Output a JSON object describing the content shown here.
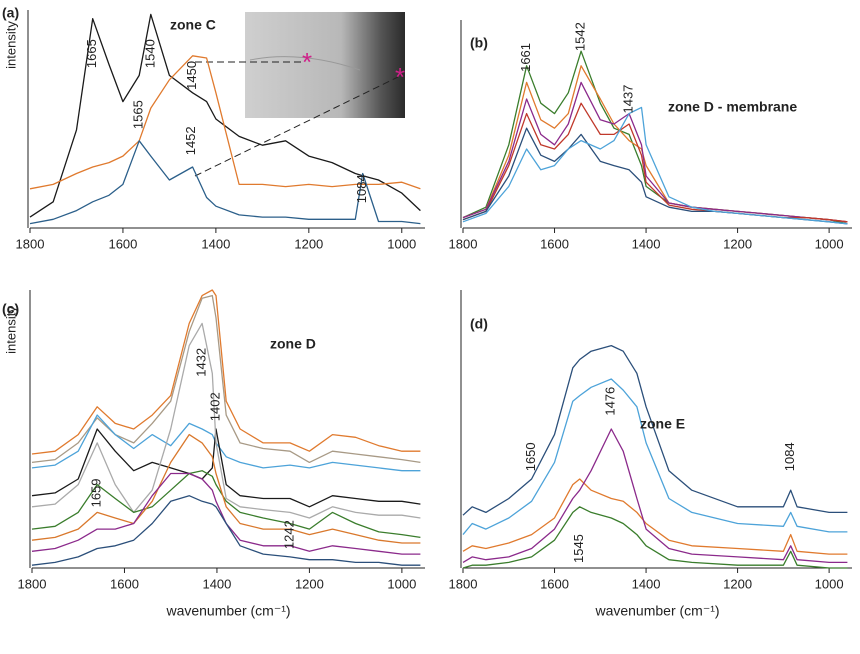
{
  "chart_data": [
    {
      "type": "line",
      "panel_label": "(a)",
      "zone": "zone C",
      "ylabel": "intensity",
      "x": [
        1800,
        1750,
        1700,
        1665,
        1630,
        1600,
        1565,
        1540,
        1500,
        1450,
        1420,
        1400,
        1350,
        1300,
        1250,
        1200,
        1150,
        1100,
        1084,
        1050,
        1000,
        960
      ],
      "series": [
        {
          "color": "#1a1a1a",
          "values": [
            5,
            12,
            45,
            96,
            75,
            58,
            70,
            98,
            70,
            62,
            58,
            50,
            42,
            38,
            40,
            33,
            30,
            25,
            24,
            22,
            16,
            8
          ]
        },
        {
          "color": "#e07a2e",
          "values": [
            18,
            20,
            25,
            28,
            30,
            33,
            40,
            55,
            68,
            79,
            78,
            62,
            20,
            20,
            19,
            20,
            19,
            20,
            20,
            20,
            21,
            18
          ]
        },
        {
          "color": "#2b5f8a",
          "values": [
            2,
            4,
            8,
            12,
            15,
            20,
            40,
            33,
            22,
            28,
            14,
            10,
            6,
            5,
            5,
            4,
            4,
            4,
            25,
            3,
            3,
            2
          ]
        }
      ],
      "annotations": [
        {
          "text": "1665",
          "x": 1665,
          "y": 80
        },
        {
          "text": "1540",
          "x": 1540,
          "y": 80
        },
        {
          "text": "1565",
          "x": 1565,
          "y": 52
        },
        {
          "text": "1450",
          "x": 1450,
          "y": 70
        },
        {
          "text": "1452",
          "x": 1452,
          "y": 40
        },
        {
          "text": "1084",
          "x": 1084,
          "y": 18
        }
      ],
      "xlim": [
        1800,
        950
      ],
      "xticks": [
        1800,
        1600,
        1400,
        1200,
        1000
      ],
      "ylim": [
        0,
        100
      ]
    },
    {
      "type": "line",
      "panel_label": "(b)",
      "zone": "zone D - membrane",
      "x": [
        1800,
        1750,
        1700,
        1661,
        1630,
        1600,
        1570,
        1542,
        1500,
        1470,
        1437,
        1410,
        1400,
        1350,
        1300,
        1250,
        1200,
        1150,
        1100,
        1050,
        1000,
        960
      ],
      "series": [
        {
          "color": "#3a7d2c",
          "values": [
            5,
            10,
            40,
            78,
            60,
            55,
            65,
            85,
            60,
            48,
            45,
            30,
            20,
            12,
            10,
            9,
            8,
            7,
            6,
            5,
            4,
            2
          ]
        },
        {
          "color": "#e07a2e",
          "values": [
            5,
            9,
            35,
            70,
            52,
            48,
            55,
            78,
            62,
            50,
            42,
            38,
            30,
            12,
            10,
            9,
            8,
            7,
            6,
            5,
            4,
            3
          ]
        },
        {
          "color": "#8b2a8b",
          "values": [
            5,
            9,
            32,
            62,
            45,
            40,
            50,
            70,
            52,
            50,
            55,
            40,
            25,
            12,
            10,
            9,
            8,
            7,
            6,
            5,
            4,
            3
          ]
        },
        {
          "color": "#c0392b",
          "values": [
            4,
            8,
            30,
            55,
            40,
            38,
            45,
            60,
            45,
            45,
            50,
            35,
            22,
            11,
            9,
            8,
            7,
            6,
            5,
            5,
            4,
            3
          ]
        },
        {
          "color": "#2b4f7a",
          "values": [
            4,
            8,
            25,
            48,
            35,
            32,
            38,
            45,
            32,
            30,
            28,
            22,
            15,
            10,
            8,
            8,
            7,
            6,
            5,
            4,
            3,
            2
          ]
        },
        {
          "color": "#4da3d9",
          "values": [
            3,
            7,
            20,
            38,
            28,
            30,
            38,
            42,
            38,
            42,
            55,
            58,
            40,
            15,
            10,
            8,
            7,
            6,
            5,
            4,
            3,
            2
          ]
        }
      ],
      "annotations": [
        {
          "text": "1661",
          "x": 1661,
          "y": 82
        },
        {
          "text": "1542",
          "x": 1542,
          "y": 92
        },
        {
          "text": "1437",
          "x": 1437,
          "y": 62
        }
      ],
      "xlim": [
        1800,
        950
      ],
      "xticks": [
        1800,
        1600,
        1400,
        1200,
        1000
      ],
      "ylim": [
        0,
        100
      ]
    },
    {
      "type": "line",
      "panel_label": "(c)",
      "zone": "zone D",
      "ylabel": "intensity",
      "xlabel": "wavenumber (cm⁻¹)",
      "x": [
        1800,
        1750,
        1700,
        1659,
        1620,
        1580,
        1540,
        1500,
        1460,
        1432,
        1410,
        1402,
        1380,
        1350,
        1300,
        1242,
        1200,
        1150,
        1100,
        1050,
        1000,
        960
      ],
      "series": [
        {
          "color": "#e07a2e",
          "values": [
            41,
            42,
            48,
            58,
            52,
            50,
            55,
            62,
            88,
            98,
            100,
            98,
            60,
            50,
            45,
            45,
            42,
            48,
            47,
            44,
            42,
            42
          ]
        },
        {
          "color": "#a89a86",
          "values": [
            38,
            39,
            45,
            54,
            48,
            45,
            52,
            60,
            85,
            97,
            98,
            90,
            55,
            45,
            43,
            42,
            38,
            42,
            41,
            40,
            39,
            38
          ]
        },
        {
          "color": "#4da3d9",
          "values": [
            36,
            37,
            42,
            55,
            48,
            43,
            48,
            44,
            52,
            50,
            48,
            45,
            40,
            38,
            36,
            37,
            36,
            38,
            37,
            36,
            35,
            35
          ]
        },
        {
          "color": "#1a1a1a",
          "values": [
            26,
            27,
            32,
            50,
            42,
            35,
            38,
            36,
            34,
            32,
            36,
            50,
            30,
            26,
            25,
            25,
            22,
            26,
            25,
            24,
            24,
            23
          ]
        },
        {
          "color": "#aaaaaa",
          "values": [
            22,
            23,
            30,
            45,
            30,
            20,
            28,
            50,
            80,
            88,
            70,
            45,
            25,
            22,
            21,
            20,
            18,
            22,
            20,
            19,
            19,
            18
          ]
        },
        {
          "color": "#3a7d2c",
          "values": [
            14,
            15,
            20,
            30,
            25,
            20,
            22,
            28,
            34,
            35,
            33,
            30,
            24,
            20,
            18,
            16,
            14,
            20,
            16,
            13,
            12,
            11
          ]
        },
        {
          "color": "#d9782c",
          "values": [
            10,
            11,
            14,
            20,
            18,
            16,
            24,
            38,
            48,
            45,
            40,
            34,
            22,
            16,
            14,
            14,
            12,
            14,
            12,
            10,
            9,
            9
          ]
        },
        {
          "color": "#8b2a8b",
          "values": [
            6,
            7,
            10,
            14,
            14,
            16,
            26,
            34,
            34,
            32,
            28,
            24,
            16,
            10,
            8,
            8,
            6,
            8,
            7,
            6,
            5,
            5
          ]
        },
        {
          "color": "#2b4f7a",
          "values": [
            1,
            2,
            4,
            7,
            8,
            10,
            16,
            24,
            26,
            24,
            23,
            22,
            16,
            8,
            5,
            4,
            3,
            3,
            2,
            2,
            1,
            1
          ]
        }
      ],
      "annotations": [
        {
          "text": "1659",
          "x": 1659,
          "y": 27
        },
        {
          "text": "1432",
          "x": 1432,
          "y": 74
        },
        {
          "text": "1402",
          "x": 1402,
          "y": 58
        },
        {
          "text": "1242",
          "x": 1242,
          "y": 12
        }
      ],
      "xlim": [
        1800,
        950
      ],
      "xticks": [
        1800,
        1600,
        1400,
        1200,
        1000
      ],
      "ylim": [
        0,
        100
      ]
    },
    {
      "type": "line",
      "panel_label": "(d)",
      "zone": "zone E",
      "xlabel": "wavenumber (cm⁻¹)",
      "x": [
        1800,
        1780,
        1750,
        1700,
        1650,
        1600,
        1560,
        1545,
        1520,
        1476,
        1450,
        1420,
        1400,
        1350,
        1300,
        1200,
        1100,
        1084,
        1070,
        1000,
        960
      ],
      "series": [
        {
          "color": "#2b4f7a",
          "values": [
            19,
            22,
            20,
            25,
            32,
            48,
            72,
            75,
            78,
            80,
            78,
            70,
            58,
            35,
            28,
            22,
            22,
            28,
            22,
            20,
            20
          ]
        },
        {
          "color": "#4da3d9",
          "values": [
            12,
            16,
            14,
            18,
            24,
            38,
            60,
            62,
            65,
            68,
            64,
            58,
            45,
            25,
            20,
            16,
            15,
            20,
            15,
            13,
            13
          ]
        },
        {
          "color": "#e07a2e",
          "values": [
            6,
            8,
            7,
            9,
            12,
            18,
            30,
            32,
            28,
            25,
            24,
            20,
            16,
            10,
            8,
            7,
            6,
            12,
            6,
            5,
            5
          ]
        },
        {
          "color": "#8b2a8b",
          "values": [
            2,
            4,
            3,
            4,
            7,
            14,
            25,
            28,
            35,
            50,
            42,
            25,
            14,
            7,
            5,
            4,
            3,
            8,
            3,
            2,
            2
          ]
        },
        {
          "color": "#3a7d2c",
          "values": [
            0,
            1,
            1,
            2,
            4,
            10,
            20,
            22,
            20,
            18,
            16,
            12,
            8,
            3,
            2,
            1,
            1,
            6,
            1,
            0,
            0
          ]
        }
      ],
      "annotations": [
        {
          "text": "1650",
          "x": 1650,
          "y": 40
        },
        {
          "text": "1545",
          "x": 1545,
          "y": 7
        },
        {
          "text": "1476",
          "x": 1476,
          "y": 60
        },
        {
          "text": "1084",
          "x": 1084,
          "y": 40
        }
      ],
      "xlim": [
        1800,
        950
      ],
      "xticks": [
        1800,
        1600,
        1400,
        1200,
        1000
      ],
      "ylim": [
        0,
        100
      ]
    }
  ]
}
